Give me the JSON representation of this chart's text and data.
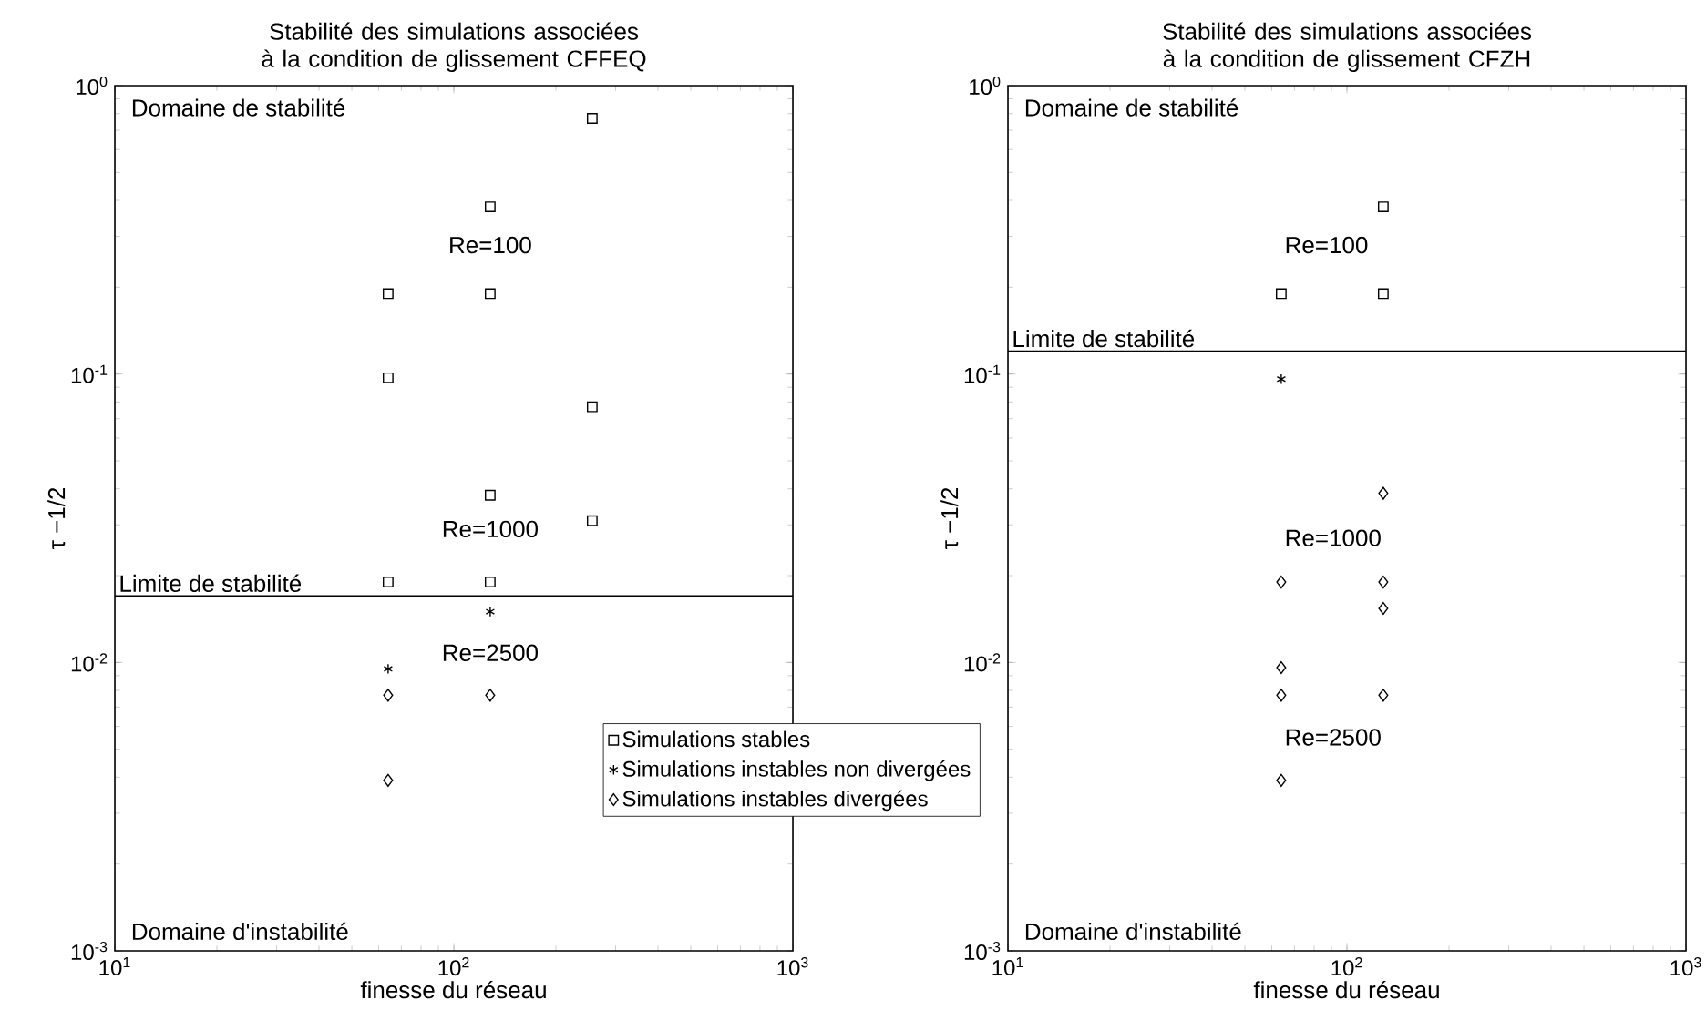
{
  "chart_data": [
    {
      "type": "scatter",
      "title": "Stabilité des simulations associées à la condition de glissement CFFEQ",
      "xlabel": "finesse du réseau",
      "ylabel": "τ −1/2",
      "log": "xy",
      "xlim": [
        10,
        1000
      ],
      "ylim": [
        0.001,
        1
      ],
      "xticks": [
        {
          "value": 10,
          "label": "10$^{1}$"
        },
        {
          "value": 100,
          "label": "10$^{2}$"
        },
        {
          "value": 1000,
          "label": "10$^{3}$"
        }
      ],
      "yticks": [
        {
          "value": 0.001,
          "label": "10$^{-3}$"
        },
        {
          "value": 0.01,
          "label": "10$^{-2}$"
        },
        {
          "value": 0.1,
          "label": "10$^{-1}$"
        },
        {
          "value": 1,
          "label": "10$^{0}$"
        }
      ],
      "legend": "bottom right",
      "grid": false,
      "series": [
        {
          "name": "Simulations stables",
          "color": "#000000",
          "marker": "square",
          "x": [
            64,
            64,
            64,
            128,
            128,
            128,
            128,
            256,
            256,
            256
          ],
          "values": [
            0.19,
            0.097,
            0.019,
            0.38,
            0.19,
            0.038,
            0.019,
            0.77,
            0.077,
            0.031
          ]
        },
        {
          "name": "Simulations instables non divergées",
          "color": "#000000",
          "marker": "cross",
          "x": [
            64,
            128
          ],
          "values": [
            0.0095,
            0.015
          ]
        },
        {
          "name": "Simulations instables divergées",
          "color": "#000000",
          "marker": "diamond",
          "x": [
            64,
            64,
            128
          ],
          "values": [
            0.0077,
            0.0039,
            0.0077
          ]
        }
      ],
      "ref_lines": [
        {
          "axis": "y",
          "value": 0.017,
          "label": "Limite de stabilité",
          "color": "#000000"
        }
      ],
      "annotations": [
        "Domaine de stabilité",
        "Domaine d'instabilité",
        "Re=100",
        "Re=1000",
        "Re=2500"
      ]
    },
    {
      "type": "scatter",
      "title": "Stabilité des simulations associées à la condition de glissement CFZH",
      "xlabel": "finesse du réseau",
      "ylabel": "τ −1/2",
      "log": "xy",
      "xlim": [
        10,
        1000
      ],
      "ylim": [
        0.001,
        1
      ],
      "xticks": [
        {
          "value": 10,
          "label": "10$^{1}$"
        },
        {
          "value": 100,
          "label": "10$^{2}$"
        },
        {
          "value": 1000,
          "label": "10$^{3}$"
        }
      ],
      "yticks": [
        {
          "value": 0.001,
          "label": "10$^{-3}$"
        },
        {
          "value": 0.01,
          "label": "10$^{-2}$"
        },
        {
          "value": 0.1,
          "label": "10$^{-1}$"
        },
        {
          "value": 1,
          "label": "10$^{0}$"
        }
      ],
      "grid": false,
      "series": [
        {
          "color": "#000000",
          "marker": "square",
          "x": [
            128,
            64,
            128
          ],
          "values": [
            0.38,
            0.19,
            0.19
          ]
        },
        {
          "color": "#000000",
          "marker": "cross",
          "x": [
            64
          ],
          "values": [
            0.096
          ]
        },
        {
          "color": "#000000",
          "marker": "diamond",
          "x": [
            128,
            64,
            128,
            128,
            64,
            64,
            128,
            64
          ],
          "values": [
            0.0386,
            0.019,
            0.019,
            0.0154,
            0.0096,
            0.0077,
            0.0077,
            0.0039
          ]
        }
      ],
      "ref_lines": [
        {
          "axis": "y",
          "value": 0.12,
          "label": "Limite de stabilité",
          "color": "#000000"
        }
      ],
      "annotations": [
        "Domaine de stabilité",
        "Domaine d'instabilité",
        "Re=100",
        "Re=1000",
        "Re=2500"
      ]
    }
  ]
}
